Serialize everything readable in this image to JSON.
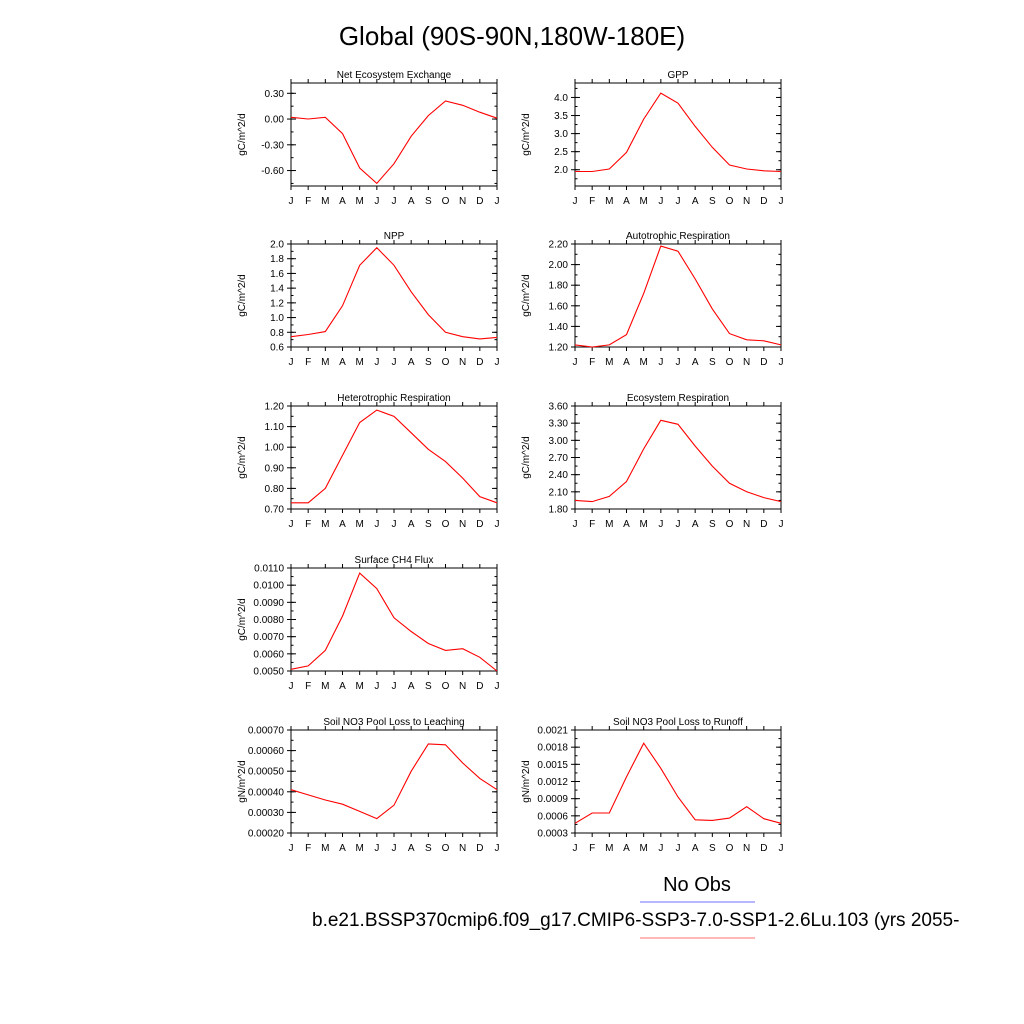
{
  "figure": {
    "title": "Global (90S-90N,180W-180E)",
    "legend_obs_label": "No Obs",
    "legend_obs_color": "#8c8cff",
    "legend_model_label": "b.e21.BSSP370cmip6.f09_g17.CMIP6-SSP3-7.0-SSP1-2.6Lu.103 (yrs 2055-",
    "legend_model_color": "#ff8c8c",
    "line_color": "#ff0000"
  },
  "chart_data": [
    {
      "type": "line",
      "title": "Net Ecosystem Exchange",
      "ylabel": "gC/m^2/d",
      "categories": [
        "J",
        "F",
        "M",
        "A",
        "M",
        "J",
        "J",
        "A",
        "S",
        "O",
        "N",
        "D",
        "J"
      ],
      "yticks": [
        "0.30",
        "0.00",
        "-0.30",
        "-0.60"
      ],
      "ytick_values": [
        0.3,
        0.0,
        -0.3,
        -0.6
      ],
      "ylim": [
        -0.78,
        0.42
      ],
      "values": [
        0.02,
        0.0,
        0.02,
        -0.17,
        -0.57,
        -0.75,
        -0.52,
        -0.2,
        0.04,
        0.21,
        0.16,
        0.08,
        0.01
      ]
    },
    {
      "type": "line",
      "title": "GPP",
      "ylabel": "gC/m^2/d",
      "categories": [
        "J",
        "F",
        "M",
        "A",
        "M",
        "J",
        "J",
        "A",
        "S",
        "O",
        "N",
        "D",
        "J"
      ],
      "yticks": [
        "4.0",
        "3.5",
        "3.0",
        "2.5",
        "2.0"
      ],
      "ytick_values": [
        4.0,
        3.5,
        3.0,
        2.5,
        2.0
      ],
      "ylim": [
        1.55,
        4.4
      ],
      "values": [
        1.95,
        1.95,
        2.02,
        2.48,
        3.4,
        4.12,
        3.84,
        3.2,
        2.62,
        2.13,
        2.02,
        1.97,
        1.95
      ]
    },
    {
      "type": "line",
      "title": "NPP",
      "ylabel": "gC/m^2/d",
      "categories": [
        "J",
        "F",
        "M",
        "A",
        "M",
        "J",
        "J",
        "A",
        "S",
        "O",
        "N",
        "D",
        "J"
      ],
      "yticks": [
        "2.0",
        "1.8",
        "1.6",
        "1.4",
        "1.2",
        "1.0",
        "0.8",
        "0.6"
      ],
      "ytick_values": [
        2.0,
        1.8,
        1.6,
        1.4,
        1.2,
        1.0,
        0.8,
        0.6
      ],
      "ylim": [
        0.6,
        2.0
      ],
      "values": [
        0.74,
        0.77,
        0.81,
        1.16,
        1.71,
        1.95,
        1.71,
        1.35,
        1.04,
        0.8,
        0.74,
        0.71,
        0.73
      ]
    },
    {
      "type": "line",
      "title": "Autotrophic Respiration",
      "ylabel": "gC/m^2/d",
      "categories": [
        "J",
        "F",
        "M",
        "A",
        "M",
        "J",
        "J",
        "A",
        "S",
        "O",
        "N",
        "D",
        "J"
      ],
      "yticks": [
        "2.20",
        "2.00",
        "1.80",
        "1.60",
        "1.40",
        "1.20"
      ],
      "ytick_values": [
        2.2,
        2.0,
        1.8,
        1.6,
        1.4,
        1.2
      ],
      "ylim": [
        1.2,
        2.2
      ],
      "values": [
        1.22,
        1.2,
        1.22,
        1.32,
        1.72,
        2.18,
        2.13,
        1.86,
        1.57,
        1.33,
        1.27,
        1.26,
        1.22
      ]
    },
    {
      "type": "line",
      "title": "Heterotrophic Respiration",
      "ylabel": "gC/m^2/d",
      "categories": [
        "J",
        "F",
        "M",
        "A",
        "M",
        "J",
        "J",
        "A",
        "S",
        "O",
        "N",
        "D",
        "J"
      ],
      "yticks": [
        "1.20",
        "1.10",
        "1.00",
        "0.90",
        "0.80",
        "0.70"
      ],
      "ytick_values": [
        1.2,
        1.1,
        1.0,
        0.9,
        0.8,
        0.7
      ],
      "ylim": [
        0.7,
        1.2
      ],
      "values": [
        0.73,
        0.73,
        0.8,
        0.96,
        1.12,
        1.18,
        1.15,
        1.07,
        0.99,
        0.93,
        0.85,
        0.76,
        0.73
      ]
    },
    {
      "type": "line",
      "title": "Ecosystem Respiration",
      "ylabel": "gC/m^2/d",
      "categories": [
        "J",
        "F",
        "M",
        "A",
        "M",
        "J",
        "J",
        "A",
        "S",
        "O",
        "N",
        "D",
        "J"
      ],
      "yticks": [
        "3.60",
        "3.30",
        "3.00",
        "2.70",
        "2.40",
        "2.10",
        "1.80"
      ],
      "ytick_values": [
        3.6,
        3.3,
        3.0,
        2.7,
        2.4,
        2.1,
        1.8
      ],
      "ylim": [
        1.8,
        3.6
      ],
      "values": [
        1.95,
        1.93,
        2.02,
        2.28,
        2.85,
        3.35,
        3.28,
        2.9,
        2.55,
        2.25,
        2.1,
        2.0,
        1.93
      ]
    },
    {
      "type": "line",
      "title": "Surface CH4 Flux",
      "ylabel": "gC/m^2/d",
      "categories": [
        "J",
        "F",
        "M",
        "A",
        "M",
        "J",
        "J",
        "A",
        "S",
        "O",
        "N",
        "D",
        "J"
      ],
      "yticks": [
        "0.0110",
        "0.0100",
        "0.0090",
        "0.0080",
        "0.0070",
        "0.0060",
        "0.0050"
      ],
      "ytick_values": [
        0.011,
        0.01,
        0.009,
        0.008,
        0.007,
        0.006,
        0.005
      ],
      "ylim": [
        0.005,
        0.011
      ],
      "values": [
        0.0051,
        0.0053,
        0.0062,
        0.0082,
        0.0107,
        0.0098,
        0.0081,
        0.0073,
        0.0066,
        0.0062,
        0.0063,
        0.0058,
        0.005
      ]
    },
    {
      "type": "line",
      "title": "Soil NO3 Pool Loss to Leaching",
      "ylabel": "gN/m^2/d",
      "categories": [
        "J",
        "F",
        "M",
        "A",
        "M",
        "J",
        "J",
        "A",
        "S",
        "O",
        "N",
        "D",
        "J"
      ],
      "yticks": [
        "0.00070",
        "0.00060",
        "0.00050",
        "0.00040",
        "0.00030",
        "0.00020"
      ],
      "ytick_values": [
        0.0007,
        0.0006,
        0.0005,
        0.0004,
        0.0003,
        0.0002
      ],
      "ylim": [
        0.0002,
        0.0007
      ],
      "values": [
        0.00041,
        0.000385,
        0.00036,
        0.00034,
        0.000305,
        0.00027,
        0.000335,
        0.0005,
        0.000632,
        0.000628,
        0.00054,
        0.000465,
        0.00041
      ]
    },
    {
      "type": "line",
      "title": "Soil NO3 Pool Loss to Runoff",
      "ylabel": "gN/m^2/d",
      "categories": [
        "J",
        "F",
        "M",
        "A",
        "M",
        "J",
        "J",
        "A",
        "S",
        "O",
        "N",
        "D",
        "J"
      ],
      "yticks": [
        "0.0021",
        "0.0018",
        "0.0015",
        "0.0012",
        "0.0009",
        "0.0006",
        "0.0003"
      ],
      "ytick_values": [
        0.0021,
        0.0018,
        0.0015,
        0.0012,
        0.0009,
        0.0006,
        0.0003
      ],
      "ylim": [
        0.0003,
        0.0021
      ],
      "values": [
        0.00047,
        0.00065,
        0.00065,
        0.00128,
        0.00187,
        0.00143,
        0.00093,
        0.00053,
        0.00052,
        0.00056,
        0.00076,
        0.00055,
        0.00047
      ]
    }
  ]
}
